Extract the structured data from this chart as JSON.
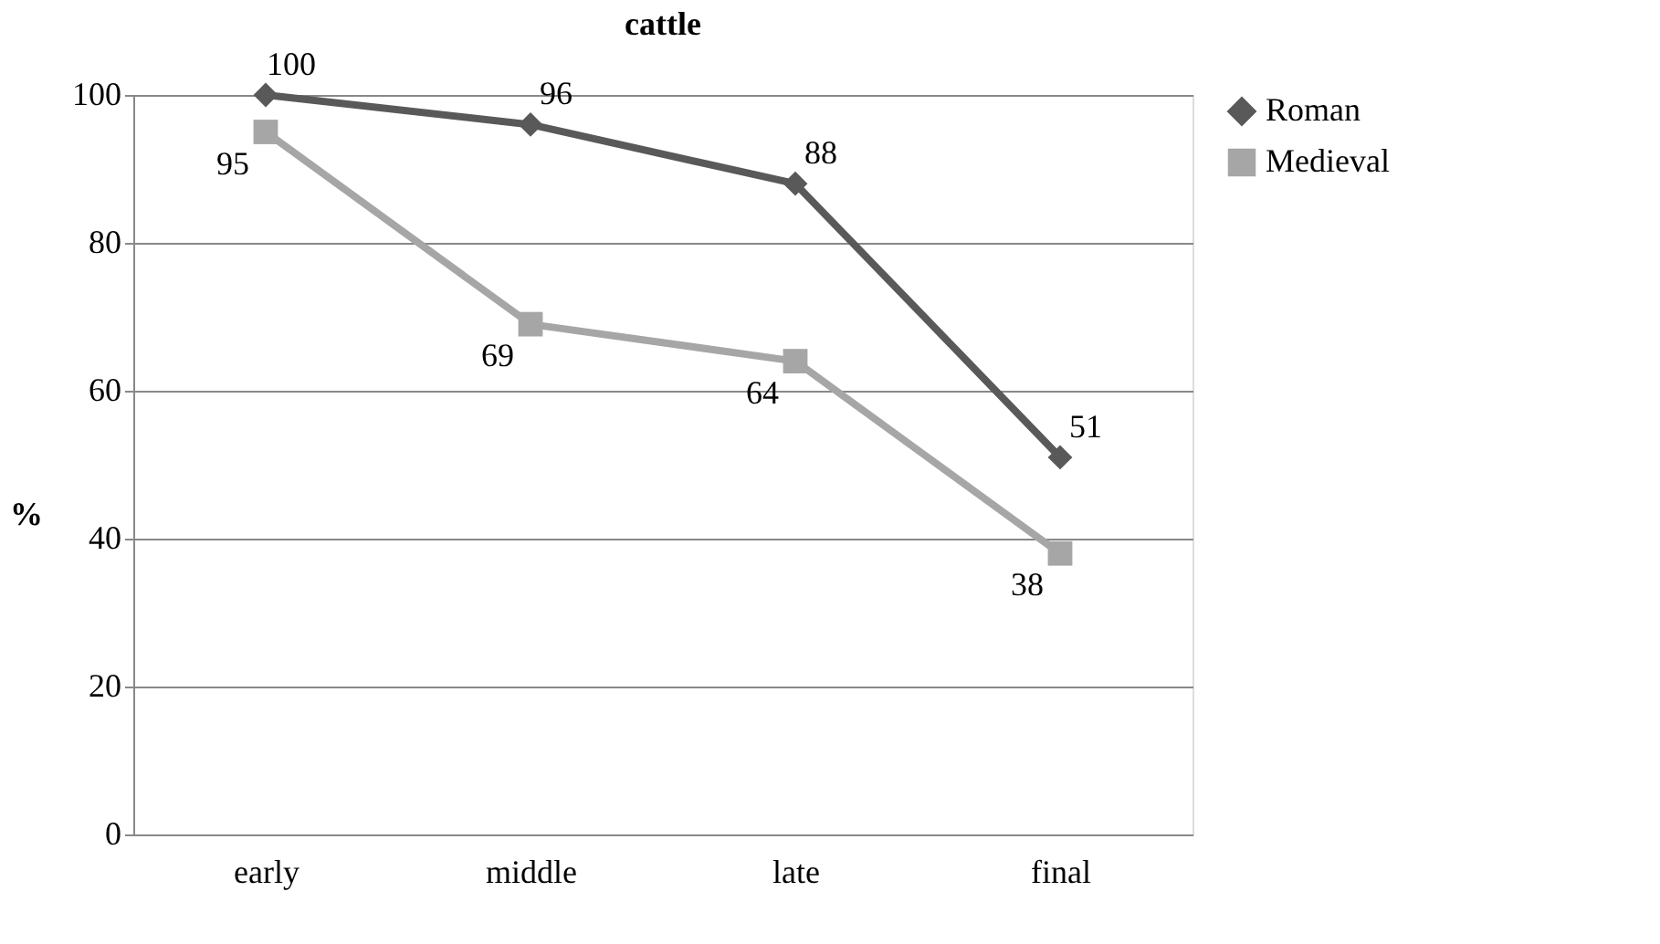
{
  "chart_data": {
    "type": "line",
    "title": "cattle",
    "ylabel": "%",
    "categories": [
      "early",
      "middle",
      "late",
      "final"
    ],
    "series": [
      {
        "name": "Roman",
        "color": "#595959",
        "marker": "diamond",
        "values": [
          100,
          96,
          88,
          51
        ]
      },
      {
        "name": "Medieval",
        "color": "#a6a6a6",
        "marker": "square",
        "values": [
          95,
          69,
          64,
          38
        ]
      }
    ],
    "ylim": [
      0,
      100
    ],
    "yticks": [
      0,
      20,
      40,
      60,
      80,
      100
    ],
    "grid": "y",
    "legend": "right",
    "data_labels": true
  }
}
